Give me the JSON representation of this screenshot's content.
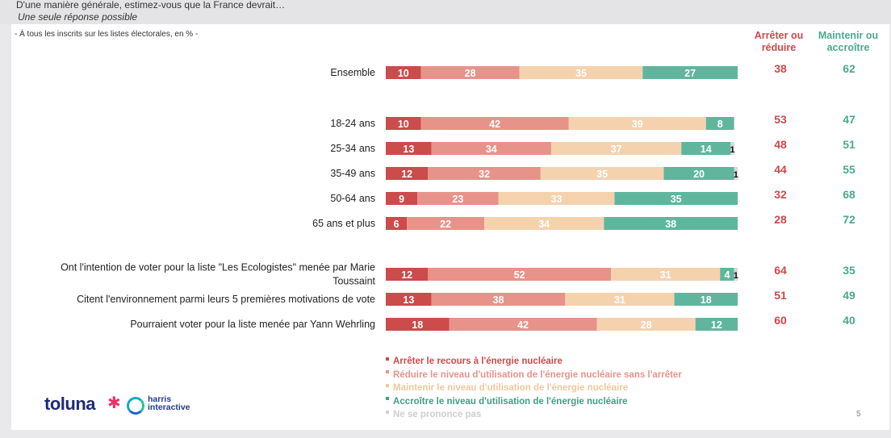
{
  "header": {
    "question": "D'une manière générale, estimez-vous que la France devrait…",
    "subquestion": "Une seule réponse possible"
  },
  "base_note": "- À tous les inscrits sur les listes électorales, en % -",
  "columns": {
    "arreter": {
      "line1": "Arrêter ou",
      "line2": "réduire"
    },
    "maintenir": {
      "line1": "Maintenir ou",
      "line2": "accroître"
    }
  },
  "colors": {
    "arreter": "#cc4b4b",
    "reduire": "#e8938a",
    "maintenir": "#f5d2ae",
    "accroitre": "#5fb69d",
    "nsp": "#d8d8d8",
    "col_arreter_text": "#d0474a",
    "col_maintenir_text": "#4aaa8e"
  },
  "legend": [
    {
      "label": "Arrêter le recours à l'énergie nucléaire",
      "color": "#cc4b4b"
    },
    {
      "label": "Réduire le niveau d'utilisation de l'énergie nucléaire sans l'arrêter",
      "color": "#e8938a"
    },
    {
      "label": "Maintenir le niveau d'utilisation de l'énergie nucléaire",
      "color": "#f2c79b"
    },
    {
      "label": "Accroître le niveau d'utilisation de l'énergie nucléaire",
      "color": "#3f9f83"
    },
    {
      "label": "Ne se prononce pas",
      "color": "#cfcfcf"
    }
  ],
  "chart_data": {
    "type": "bar",
    "stacked": true,
    "orientation": "horizontal",
    "series": [
      {
        "name": "Arrêter le recours à l'énergie nucléaire",
        "color": "#cc4b4b"
      },
      {
        "name": "Réduire le niveau d'utilisation de l'énergie nucléaire sans l'arrêter",
        "color": "#e8938a"
      },
      {
        "name": "Maintenir le niveau d'utilisation de l'énergie nucléaire",
        "color": "#f5d2ae"
      },
      {
        "name": "Accroître le niveau d'utilisation de l'énergie nucléaire",
        "color": "#5fb69d"
      },
      {
        "name": "Ne se prononce pas",
        "color": "#d8d8d8"
      }
    ],
    "rows": [
      {
        "label": "Ensemble",
        "values": [
          10,
          28,
          35,
          27,
          0
        ],
        "arreter_reduire": 38,
        "maintenir_accroitre": 62
      },
      {
        "label": "18-24 ans",
        "values": [
          10,
          42,
          39,
          8,
          0
        ],
        "arreter_reduire": 53,
        "maintenir_accroitre": 47
      },
      {
        "label": "25-34 ans",
        "values": [
          13,
          34,
          37,
          14,
          1
        ],
        "arreter_reduire": 48,
        "maintenir_accroitre": 51
      },
      {
        "label": "35-49 ans",
        "values": [
          12,
          32,
          35,
          20,
          1
        ],
        "arreter_reduire": 44,
        "maintenir_accroitre": 55
      },
      {
        "label": "50-64 ans",
        "values": [
          9,
          23,
          33,
          35,
          0
        ],
        "arreter_reduire": 32,
        "maintenir_accroitre": 68
      },
      {
        "label": "65 ans et plus",
        "values": [
          6,
          22,
          34,
          38,
          0
        ],
        "arreter_reduire": 28,
        "maintenir_accroitre": 72
      },
      {
        "label": "Ont l'intention de voter pour la liste \"Les Ecologistes\" menée par Marie Toussaint",
        "label_lines": [
          "Ont l'intention de voter pour la liste \"Les Ecologistes\" menée par Marie",
          "Toussaint"
        ],
        "values": [
          12,
          52,
          31,
          4,
          1
        ],
        "arreter_reduire": 64,
        "maintenir_accroitre": 35
      },
      {
        "label": "Citent l'environnement parmi leurs 5 premières motivations de vote",
        "values": [
          13,
          38,
          31,
          18,
          0
        ],
        "arreter_reduire": 51,
        "maintenir_accroitre": 49
      },
      {
        "label": "Pourraient voter pour la liste menée par Yann Wehrling",
        "values": [
          18,
          42,
          28,
          12,
          0
        ],
        "arreter_reduire": 60,
        "maintenir_accroitre": 40
      }
    ],
    "xlim": [
      0,
      100
    ]
  },
  "logo": {
    "toluna": "toluna",
    "harris_line1": "harris",
    "harris_line2": "interactive"
  },
  "page_number": "5"
}
